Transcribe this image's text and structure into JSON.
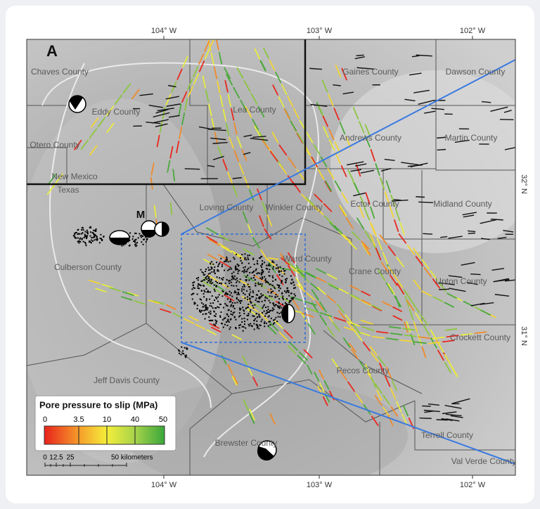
{
  "panel_label": "A",
  "marker_label": "M",
  "longitude_labels": {
    "top": [
      "104° W",
      "103° W",
      "102° W"
    ],
    "bottom": [
      "104° W",
      "103° W",
      "102° W"
    ]
  },
  "latitude_labels": {
    "right": [
      "32° N",
      "31° N"
    ]
  },
  "state_labels": [
    "New Mexico",
    "Texas"
  ],
  "counties": [
    "Chaves County",
    "Eddy County",
    "Lea County",
    "Gaines County",
    "Dawson County",
    "Otero County",
    "Andrews County",
    "Martin County",
    "Loving County",
    "Winkler County",
    "Ector County",
    "Midland County",
    "Culberson County",
    "Ward County",
    "Crane County",
    "Upton County",
    "Crockett County",
    "Pecos County",
    "Jeff Davis County",
    "Brewster County",
    "Terrell County",
    "Val Verde County"
  ],
  "legend": {
    "title": "Pore pressure to slip (MPa)",
    "ticks": [
      "0",
      "3.5",
      "10",
      "40",
      "50"
    ]
  },
  "scale_bar": {
    "ticks": [
      "0",
      "12.5",
      "25"
    ],
    "unit_label": "50 kilometers"
  }
}
